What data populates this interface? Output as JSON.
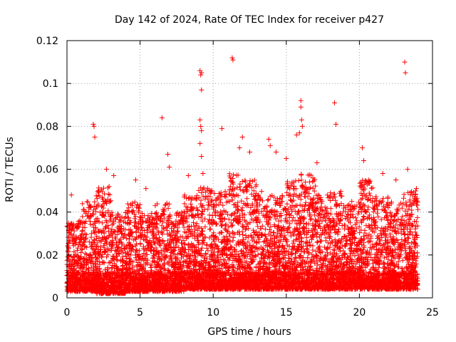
{
  "chart_data": {
    "type": "scatter",
    "title": "Day 142 of 2024, Rate Of TEC Index for receiver p427",
    "xlabel": "GPS time / hours",
    "ylabel": "ROTI / TECUs",
    "xlim": [
      0,
      25
    ],
    "ylim": [
      0,
      0.12
    ],
    "x_ticks": [
      0,
      5,
      10,
      15,
      20,
      25
    ],
    "x_tick_labels": [
      "0",
      "5",
      "10",
      "15",
      "20",
      "25"
    ],
    "y_ticks": [
      0,
      0.02,
      0.04,
      0.06,
      0.08,
      0.1,
      0.12
    ],
    "y_tick_labels": [
      "0",
      "0.02",
      "0.04",
      "0.06",
      "0.08",
      "0.1",
      "0.12"
    ],
    "grid": true,
    "marker": "+",
    "color": "#ff0000",
    "series": [
      {
        "name": "ROTI",
        "points": [
          [
            0.3,
            0.048
          ],
          [
            1.8,
            0.081
          ],
          [
            1.85,
            0.08
          ],
          [
            1.9,
            0.075
          ],
          [
            2.7,
            0.06
          ],
          [
            3.2,
            0.057
          ],
          [
            4.7,
            0.055
          ],
          [
            5.4,
            0.051
          ],
          [
            6.5,
            0.084
          ],
          [
            6.9,
            0.067
          ],
          [
            7.0,
            0.061
          ],
          [
            8.3,
            0.057
          ],
          [
            9.1,
            0.106
          ],
          [
            9.15,
            0.104
          ],
          [
            9.2,
            0.105
          ],
          [
            9.2,
            0.097
          ],
          [
            9.1,
            0.083
          ],
          [
            9.15,
            0.08
          ],
          [
            9.2,
            0.078
          ],
          [
            9.1,
            0.072
          ],
          [
            9.2,
            0.066
          ],
          [
            9.3,
            0.058
          ],
          [
            10.6,
            0.079
          ],
          [
            11.3,
            0.112
          ],
          [
            11.35,
            0.111
          ],
          [
            12.0,
            0.075
          ],
          [
            11.8,
            0.07
          ],
          [
            12.5,
            0.068
          ],
          [
            13.8,
            0.074
          ],
          [
            13.9,
            0.071
          ],
          [
            14.3,
            0.068
          ],
          [
            15.0,
            0.065
          ],
          [
            15.7,
            0.076
          ],
          [
            16.0,
            0.092
          ],
          [
            16.0,
            0.089
          ],
          [
            16.05,
            0.083
          ],
          [
            16.1,
            0.08
          ],
          [
            15.9,
            0.077
          ],
          [
            17.1,
            0.063
          ],
          [
            18.3,
            0.091
          ],
          [
            18.4,
            0.081
          ],
          [
            20.2,
            0.07
          ],
          [
            20.3,
            0.064
          ],
          [
            21.6,
            0.058
          ],
          [
            22.5,
            0.055
          ],
          [
            23.1,
            0.11
          ],
          [
            23.15,
            0.105
          ],
          [
            23.3,
            0.06
          ],
          [
            23.9,
            0.051
          ]
        ],
        "bands": [
          {
            "x_range": [
              0.0,
              1.0
            ],
            "y_range": [
              0.003,
              0.036
            ]
          },
          {
            "x_range": [
              1.0,
              2.0
            ],
            "y_range": [
              0.003,
              0.045
            ]
          },
          {
            "x_range": [
              2.0,
              3.0
            ],
            "y_range": [
              0.002,
              0.052
            ]
          },
          {
            "x_range": [
              3.0,
              4.0
            ],
            "y_range": [
              0.002,
              0.04
            ]
          },
          {
            "x_range": [
              4.0,
              5.0
            ],
            "y_range": [
              0.003,
              0.045
            ]
          },
          {
            "x_range": [
              5.0,
              6.0
            ],
            "y_range": [
              0.003,
              0.04
            ]
          },
          {
            "x_range": [
              6.0,
              7.0
            ],
            "y_range": [
              0.003,
              0.045
            ]
          },
          {
            "x_range": [
              7.0,
              8.0
            ],
            "y_range": [
              0.003,
              0.04
            ]
          },
          {
            "x_range": [
              8.0,
              9.0
            ],
            "y_range": [
              0.004,
              0.048
            ]
          },
          {
            "x_range": [
              9.0,
              10.0
            ],
            "y_range": [
              0.004,
              0.052
            ]
          },
          {
            "x_range": [
              10.0,
              11.0
            ],
            "y_range": [
              0.004,
              0.05
            ]
          },
          {
            "x_range": [
              11.0,
              12.0
            ],
            "y_range": [
              0.004,
              0.058
            ]
          },
          {
            "x_range": [
              12.0,
              13.0
            ],
            "y_range": [
              0.004,
              0.055
            ]
          },
          {
            "x_range": [
              13.0,
              14.0
            ],
            "y_range": [
              0.004,
              0.05
            ]
          },
          {
            "x_range": [
              14.0,
              15.0
            ],
            "y_range": [
              0.004,
              0.048
            ]
          },
          {
            "x_range": [
              15.0,
              16.0
            ],
            "y_range": [
              0.004,
              0.055
            ]
          },
          {
            "x_range": [
              16.0,
              17.0
            ],
            "y_range": [
              0.004,
              0.058
            ]
          },
          {
            "x_range": [
              17.0,
              18.0
            ],
            "y_range": [
              0.004,
              0.048
            ]
          },
          {
            "x_range": [
              18.0,
              19.0
            ],
            "y_range": [
              0.004,
              0.05
            ]
          },
          {
            "x_range": [
              19.0,
              20.0
            ],
            "y_range": [
              0.004,
              0.045
            ]
          },
          {
            "x_range": [
              20.0,
              21.0
            ],
            "y_range": [
              0.004,
              0.055
            ]
          },
          {
            "x_range": [
              21.0,
              22.0
            ],
            "y_range": [
              0.004,
              0.048
            ]
          },
          {
            "x_range": [
              22.0,
              23.0
            ],
            "y_range": [
              0.004,
              0.045
            ]
          },
          {
            "x_range": [
              23.0,
              24.0
            ],
            "y_range": [
              0.004,
              0.05
            ]
          }
        ],
        "baseline_y": 0.012
      }
    ]
  }
}
